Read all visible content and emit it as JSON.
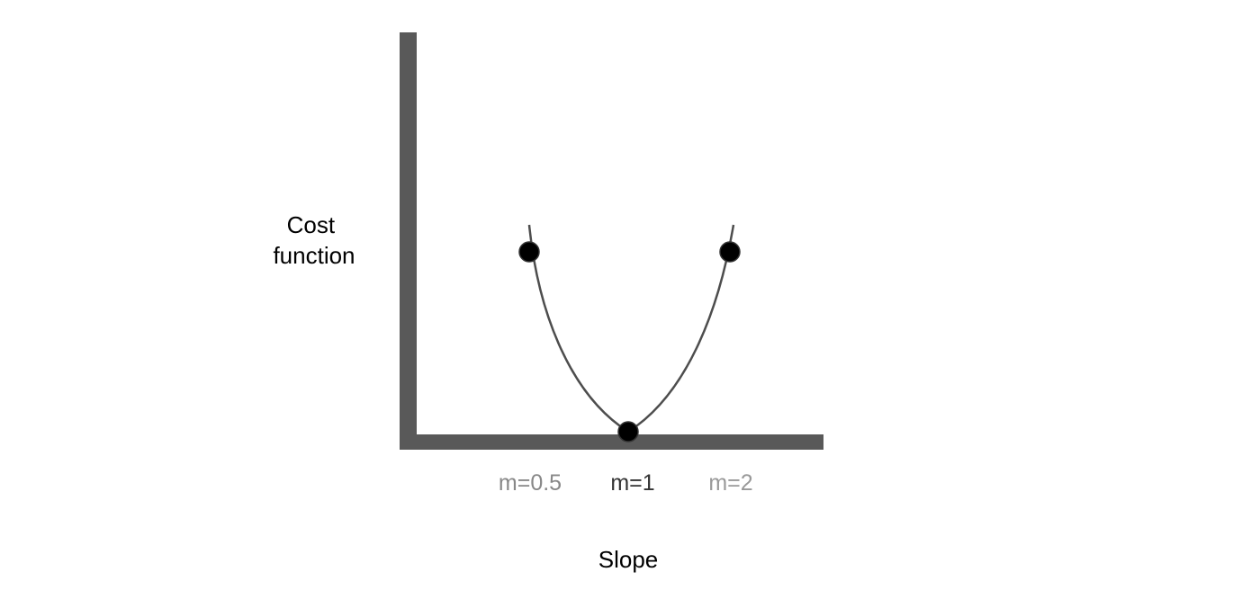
{
  "diagram": {
    "ylabel": [
      "Cost",
      "function"
    ],
    "xlabel": "Slope",
    "points": [
      {
        "label": "m=0.5",
        "color": "#888888"
      },
      {
        "label": "m=1",
        "color": "#333333"
      },
      {
        "label": "m=2",
        "color": "#999999"
      }
    ]
  }
}
